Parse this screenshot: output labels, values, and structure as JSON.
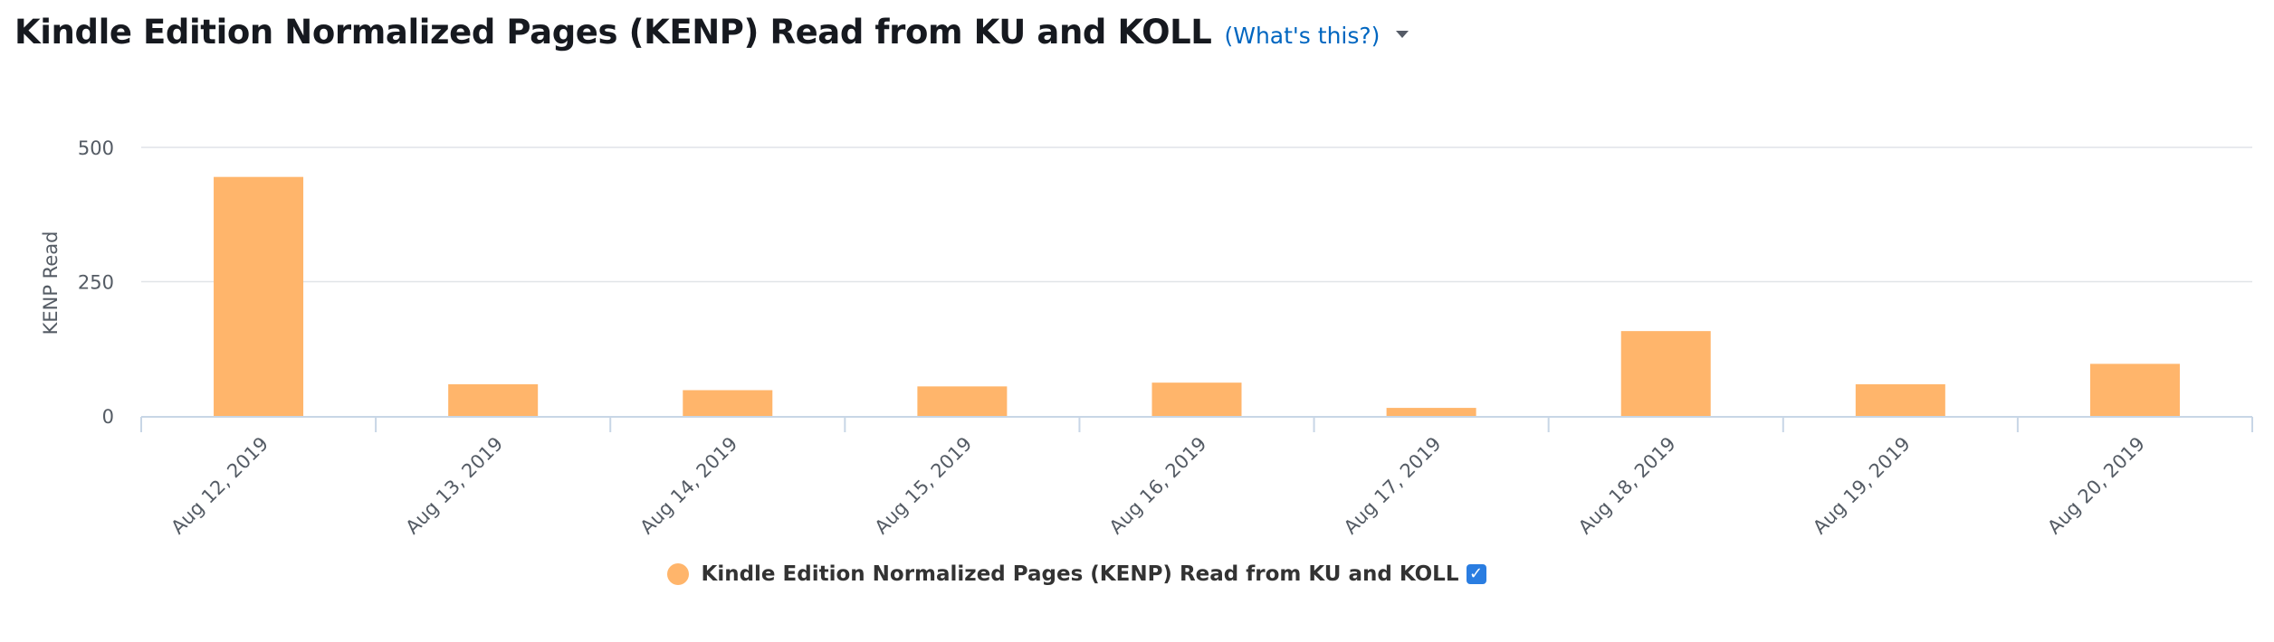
{
  "header": {
    "title": "Kindle Edition Normalized Pages (KENP) Read from KU and KOLL",
    "help_link": "(What's this?)",
    "dropdown_icon": "caret-down-icon"
  },
  "colors": {
    "bar": "#ffb56b",
    "grid": "#e1e4e8",
    "axis": "#c8d6e6",
    "link": "#0066c0",
    "checkbox": "#2a7de1"
  },
  "legend": {
    "label": "Kindle Edition Normalized Pages (KENP) Read from KU and KOLL",
    "checked_glyph": "✓"
  },
  "chart_data": {
    "type": "bar",
    "title": "Kindle Edition Normalized Pages (KENP) Read from KU and KOLL",
    "xlabel": "",
    "ylabel": "KENP Read",
    "ylim": [
      0,
      500
    ],
    "yticks": [
      0,
      250,
      500
    ],
    "grid": true,
    "legend_position": "bottom",
    "categories": [
      "Aug 12, 2019",
      "Aug 13, 2019",
      "Aug 14, 2019",
      "Aug 15, 2019",
      "Aug 16, 2019",
      "Aug 17, 2019",
      "Aug 18, 2019",
      "Aug 19, 2019",
      "Aug 20, 2019"
    ],
    "series": [
      {
        "name": "Kindle Edition Normalized Pages (KENP) Read from KU and KOLL",
        "values": [
          445,
          59,
          48,
          55,
          62,
          15,
          158,
          59,
          97
        ]
      }
    ]
  }
}
